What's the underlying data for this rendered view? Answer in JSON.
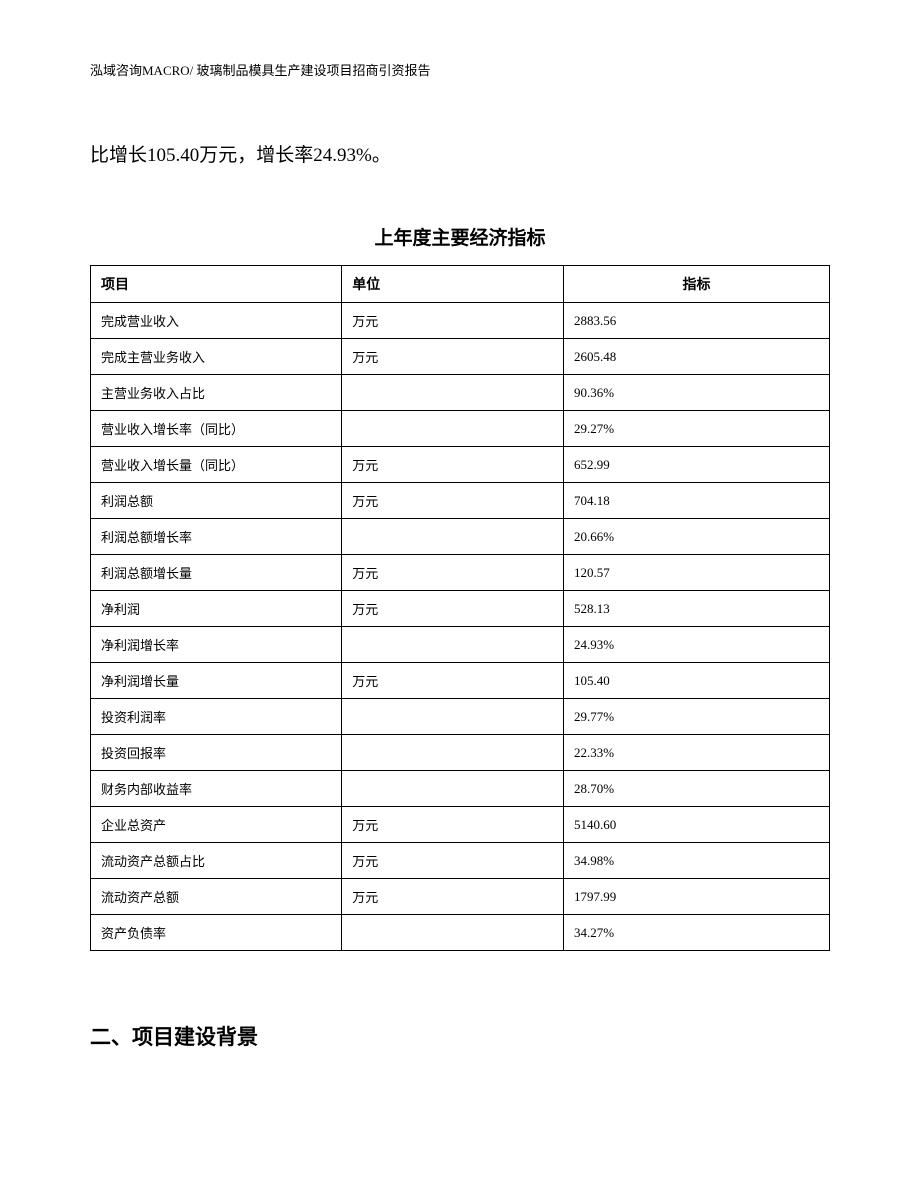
{
  "header": {
    "text": "泓域咨询MACRO/ 玻璃制品模具生产建设项目招商引资报告"
  },
  "body_text": "比增长105.40万元，增长率24.93%。",
  "table": {
    "title": "上年度主要经济指标",
    "columns": {
      "item": "项目",
      "unit": "单位",
      "indicator": "指标"
    },
    "rows": [
      {
        "item": "完成营业收入",
        "unit": "万元",
        "value": "2883.56"
      },
      {
        "item": "完成主营业务收入",
        "unit": "万元",
        "value": "2605.48"
      },
      {
        "item": "主营业务收入占比",
        "unit": "",
        "value": "90.36%"
      },
      {
        "item": "营业收入增长率（同比）",
        "unit": "",
        "value": "29.27%"
      },
      {
        "item": "营业收入增长量（同比）",
        "unit": "万元",
        "value": "652.99"
      },
      {
        "item": "利润总额",
        "unit": "万元",
        "value": "704.18"
      },
      {
        "item": "利润总额增长率",
        "unit": "",
        "value": "20.66%"
      },
      {
        "item": "利润总额增长量",
        "unit": "万元",
        "value": "120.57"
      },
      {
        "item": "净利润",
        "unit": "万元",
        "value": "528.13"
      },
      {
        "item": "净利润增长率",
        "unit": "",
        "value": "24.93%"
      },
      {
        "item": "净利润增长量",
        "unit": "万元",
        "value": "105.40"
      },
      {
        "item": "投资利润率",
        "unit": "",
        "value": "29.77%"
      },
      {
        "item": "投资回报率",
        "unit": "",
        "value": "22.33%"
      },
      {
        "item": "财务内部收益率",
        "unit": "",
        "value": "28.70%"
      },
      {
        "item": "企业总资产",
        "unit": "万元",
        "value": "5140.60"
      },
      {
        "item": "流动资产总额占比",
        "unit": "万元",
        "value": "34.98%"
      },
      {
        "item": "流动资产总额",
        "unit": "万元",
        "value": "1797.99"
      },
      {
        "item": "资产负债率",
        "unit": "",
        "value": "34.27%"
      }
    ]
  },
  "section_heading": "二、项目建设背景"
}
